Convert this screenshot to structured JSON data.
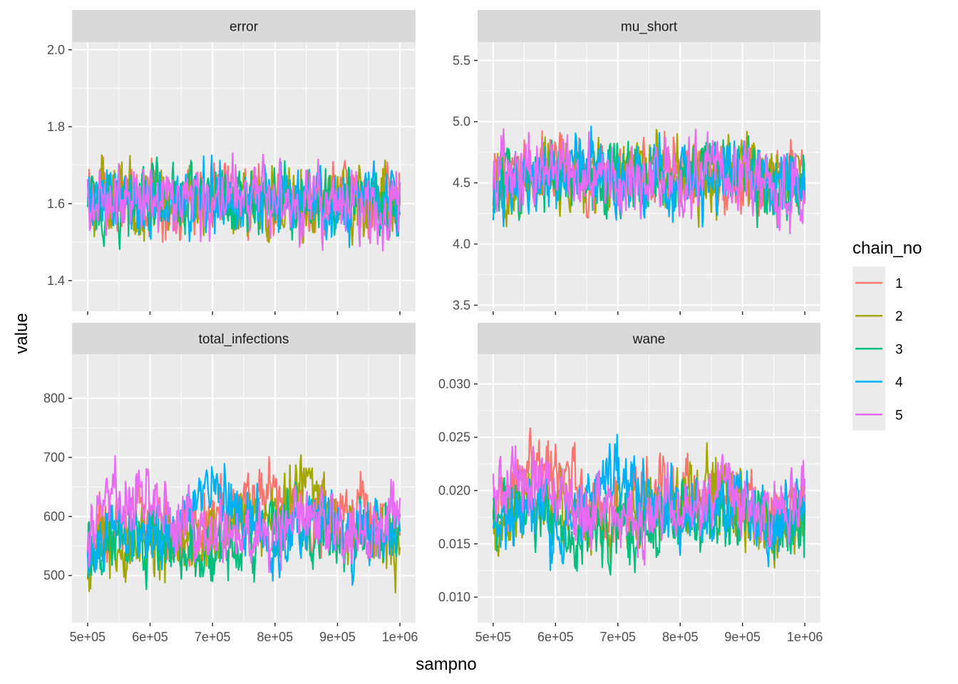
{
  "chart_data": {
    "type": "line",
    "xlabel": "sampno",
    "ylabel": "value",
    "legend": {
      "title": "chain_no",
      "position": "right",
      "entries": [
        {
          "label": "1",
          "color": "#F8766D"
        },
        {
          "label": "2",
          "color": "#A3A500"
        },
        {
          "label": "3",
          "color": "#00BF7D"
        },
        {
          "label": "4",
          "color": "#00B0F6"
        },
        {
          "label": "5",
          "color": "#E76BF3"
        }
      ]
    },
    "x_ticks": [
      {
        "value": 500000,
        "label": "5e+05"
      },
      {
        "value": 600000,
        "label": "6e+05"
      },
      {
        "value": 700000,
        "label": "7e+05"
      },
      {
        "value": 800000,
        "label": "8e+05"
      },
      {
        "value": 900000,
        "label": "9e+05"
      },
      {
        "value": 1000000,
        "label": "1e+06"
      }
    ],
    "xlim": [
      475000,
      1025000
    ],
    "grid": true,
    "panels": [
      {
        "title": "error",
        "ylim": [
          1.32,
          2.02
        ],
        "y_ticks": [
          {
            "value": 1.4,
            "label": "1.4"
          },
          {
            "value": 1.6,
            "label": "1.6"
          },
          {
            "value": 1.8,
            "label": "1.8"
          },
          {
            "value": 2.0,
            "label": "2.0"
          }
        ],
        "series": [
          {
            "name": "1",
            "x": [
              500000,
              550000,
              600000,
              650000,
              700000,
              750000,
              800000,
              850000,
              900000,
              950000,
              1000000
            ],
            "y": [
              1.62,
              1.6,
              1.61,
              1.6,
              1.62,
              1.61,
              1.59,
              1.6,
              1.62,
              1.61,
              1.6
            ]
          },
          {
            "name": "2",
            "x": [
              500000,
              550000,
              600000,
              650000,
              700000,
              750000,
              800000,
              850000,
              900000,
              950000,
              1000000
            ],
            "y": [
              1.63,
              1.62,
              1.6,
              1.61,
              1.62,
              1.6,
              1.61,
              1.6,
              1.6,
              1.61,
              1.62
            ]
          },
          {
            "name": "3",
            "x": [
              500000,
              550000,
              600000,
              650000,
              700000,
              750000,
              800000,
              850000,
              900000,
              950000,
              1000000
            ],
            "y": [
              1.61,
              1.6,
              1.62,
              1.61,
              1.6,
              1.61,
              1.62,
              1.6,
              1.61,
              1.6,
              1.6
            ]
          },
          {
            "name": "4",
            "x": [
              500000,
              550000,
              600000,
              650000,
              700000,
              750000,
              800000,
              850000,
              900000,
              950000,
              1000000
            ],
            "y": [
              1.6,
              1.61,
              1.6,
              1.62,
              1.61,
              1.6,
              1.61,
              1.62,
              1.6,
              1.61,
              1.59
            ]
          },
          {
            "name": "5",
            "x": [
              500000,
              550000,
              600000,
              650000,
              700000,
              750000,
              800000,
              850000,
              900000,
              950000,
              1000000
            ],
            "y": [
              1.62,
              1.61,
              1.61,
              1.6,
              1.61,
              1.62,
              1.6,
              1.61,
              1.6,
              1.59,
              1.58
            ]
          }
        ]
      },
      {
        "title": "mu_short",
        "ylim": [
          3.45,
          5.65
        ],
        "y_ticks": [
          {
            "value": 3.5,
            "label": "3.5"
          },
          {
            "value": 4.0,
            "label": "4.0"
          },
          {
            "value": 4.5,
            "label": "4.5"
          },
          {
            "value": 5.0,
            "label": "5.0"
          },
          {
            "value": 5.5,
            "label": "5.5"
          }
        ],
        "series": [
          {
            "name": "1",
            "x": [
              500000,
              550000,
              600000,
              650000,
              700000,
              750000,
              800000,
              850000,
              900000,
              950000,
              1000000
            ],
            "y": [
              4.55,
              4.6,
              4.65,
              4.55,
              4.5,
              4.55,
              4.6,
              4.5,
              4.55,
              4.5,
              4.55
            ]
          },
          {
            "name": "2",
            "x": [
              500000,
              550000,
              600000,
              650000,
              700000,
              750000,
              800000,
              850000,
              900000,
              950000,
              1000000
            ],
            "y": [
              4.5,
              4.55,
              4.6,
              4.5,
              4.55,
              4.6,
              4.5,
              4.55,
              4.6,
              4.5,
              4.55
            ]
          },
          {
            "name": "3",
            "x": [
              500000,
              550000,
              600000,
              650000,
              700000,
              750000,
              800000,
              850000,
              900000,
              950000,
              1000000
            ],
            "y": [
              4.55,
              4.5,
              4.5,
              4.55,
              4.5,
              4.55,
              4.5,
              4.6,
              4.55,
              4.5,
              4.5
            ]
          },
          {
            "name": "4",
            "x": [
              500000,
              550000,
              600000,
              650000,
              700000,
              750000,
              800000,
              850000,
              900000,
              950000,
              1000000
            ],
            "y": [
              4.45,
              4.55,
              4.5,
              4.6,
              4.55,
              4.5,
              4.55,
              4.5,
              4.6,
              4.55,
              4.5
            ]
          },
          {
            "name": "5",
            "x": [
              500000,
              550000,
              600000,
              650000,
              700000,
              750000,
              800000,
              850000,
              900000,
              950000,
              1000000
            ],
            "y": [
              4.6,
              4.65,
              4.6,
              4.55,
              4.5,
              4.55,
              4.5,
              4.55,
              4.5,
              4.45,
              4.5
            ]
          }
        ]
      },
      {
        "title": "total_infections",
        "ylim": [
          420,
          875
        ],
        "y_ticks": [
          {
            "value": 500,
            "label": "500"
          },
          {
            "value": 600,
            "label": "600"
          },
          {
            "value": 700,
            "label": "700"
          },
          {
            "value": 800,
            "label": "800"
          }
        ],
        "series": [
          {
            "name": "1",
            "x": [
              500000,
              550000,
              600000,
              650000,
              700000,
              750000,
              800000,
              850000,
              900000,
              950000,
              1000000
            ],
            "y": [
              545,
              580,
              600,
              570,
              590,
              620,
              640,
              600,
              610,
              600,
              580
            ]
          },
          {
            "name": "2",
            "x": [
              500000,
              550000,
              600000,
              650000,
              700000,
              750000,
              800000,
              850000,
              900000,
              950000,
              1000000
            ],
            "y": [
              520,
              560,
              555,
              540,
              560,
              600,
              580,
              680,
              570,
              560,
              560
            ]
          },
          {
            "name": "3",
            "x": [
              500000,
              550000,
              600000,
              650000,
              700000,
              750000,
              800000,
              850000,
              900000,
              950000,
              1000000
            ],
            "y": [
              540,
              570,
              560,
              550,
              540,
              570,
              590,
              600,
              560,
              570,
              580
            ]
          },
          {
            "name": "4",
            "x": [
              500000,
              550000,
              600000,
              650000,
              700000,
              750000,
              800000,
              850000,
              900000,
              950000,
              1000000
            ],
            "y": [
              530,
              580,
              570,
              600,
              650,
              600,
              560,
              570,
              580,
              560,
              600
            ]
          },
          {
            "name": "5",
            "x": [
              500000,
              550000,
              600000,
              650000,
              700000,
              750000,
              800000,
              850000,
              900000,
              950000,
              1000000
            ],
            "y": [
              560,
              650,
              620,
              580,
              560,
              570,
              560,
              600,
              580,
              560,
              620
            ]
          }
        ]
      },
      {
        "title": "wane",
        "ylim": [
          0.0076,
          0.0328
        ],
        "y_ticks": [
          {
            "value": 0.01,
            "label": "0.010"
          },
          {
            "value": 0.015,
            "label": "0.015"
          },
          {
            "value": 0.02,
            "label": "0.020"
          },
          {
            "value": 0.025,
            "label": "0.025"
          },
          {
            "value": 0.03,
            "label": "0.030"
          }
        ],
        "series": [
          {
            "name": "1",
            "x": [
              500000,
              550000,
              600000,
              650000,
              700000,
              750000,
              800000,
              850000,
              900000,
              950000,
              1000000
            ],
            "y": [
              0.018,
              0.021,
              0.022,
              0.019,
              0.018,
              0.02,
              0.019,
              0.02,
              0.019,
              0.018,
              0.019
            ]
          },
          {
            "name": "2",
            "x": [
              500000,
              550000,
              600000,
              650000,
              700000,
              750000,
              800000,
              850000,
              900000,
              950000,
              1000000
            ],
            "y": [
              0.016,
              0.018,
              0.019,
              0.018,
              0.017,
              0.018,
              0.019,
              0.021,
              0.018,
              0.016,
              0.018
            ]
          },
          {
            "name": "3",
            "x": [
              500000,
              550000,
              600000,
              650000,
              700000,
              750000,
              800000,
              850000,
              900000,
              950000,
              1000000
            ],
            "y": [
              0.017,
              0.018,
              0.017,
              0.016,
              0.017,
              0.017,
              0.018,
              0.017,
              0.018,
              0.017,
              0.017
            ]
          },
          {
            "name": "4",
            "x": [
              500000,
              550000,
              600000,
              650000,
              700000,
              750000,
              800000,
              850000,
              900000,
              950000,
              1000000
            ],
            "y": [
              0.015,
              0.018,
              0.017,
              0.019,
              0.022,
              0.019,
              0.018,
              0.018,
              0.019,
              0.017,
              0.019
            ]
          },
          {
            "name": "5",
            "x": [
              500000,
              550000,
              600000,
              650000,
              700000,
              750000,
              800000,
              850000,
              900000,
              950000,
              1000000
            ],
            "y": [
              0.019,
              0.021,
              0.019,
              0.018,
              0.018,
              0.018,
              0.019,
              0.02,
              0.019,
              0.018,
              0.019
            ]
          }
        ]
      }
    ]
  }
}
